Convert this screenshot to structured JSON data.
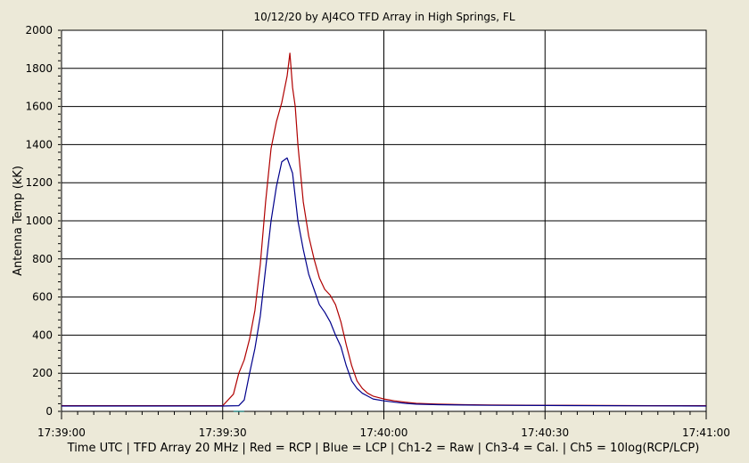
{
  "chart_data": {
    "type": "line",
    "title": "10/12/20  by  AJ4CO TFD Array  in  High Springs, FL",
    "ylabel": "Antenna Temp (kK)",
    "footer": "Time UTC  |  TFD Array 20 MHz  |  Red = RCP  |  Blue = LCP  |  Ch1-2 = Raw  |  Ch3-4 = Cal.  |  Ch5 = 10log(RCP/LCP)",
    "ylim": [
      0,
      2000
    ],
    "xlim": [
      0,
      120
    ],
    "y_ticks": [
      0,
      200,
      400,
      600,
      800,
      1000,
      1200,
      1400,
      1600,
      1800,
      2000
    ],
    "y_tick_labels": [
      "0",
      "200",
      "400",
      "600",
      "800",
      "1000",
      "1200",
      "1400",
      "1600",
      "1800",
      "2000"
    ],
    "x_ticks": [
      0,
      30,
      60,
      90,
      120
    ],
    "x_tick_labels": [
      "17:39:00",
      "17:39:30",
      "17:40:00",
      "17:40:30",
      "17:41:00"
    ],
    "x_unit": "seconds after 17:39:00",
    "grid": true,
    "series": [
      {
        "name": "RCP",
        "color": "#b00000",
        "x": [
          0,
          30,
          32,
          33,
          34,
          35,
          36,
          37,
          38,
          39,
          40,
          41,
          42,
          42.5,
          43,
          43.5,
          44,
          45,
          46,
          47,
          48,
          49,
          50,
          51,
          52,
          53,
          54,
          55,
          56,
          57,
          58,
          60,
          62,
          64,
          66,
          70,
          75,
          80,
          90,
          100,
          110,
          120
        ],
        "y": [
          30,
          30,
          90,
          200,
          270,
          380,
          530,
          770,
          1100,
          1380,
          1520,
          1620,
          1760,
          1880,
          1700,
          1600,
          1400,
          1100,
          920,
          800,
          700,
          640,
          610,
          560,
          470,
          350,
          240,
          160,
          120,
          95,
          80,
          65,
          55,
          48,
          42,
          38,
          35,
          33,
          32,
          31,
          30,
          30
        ]
      },
      {
        "name": "LCP",
        "color": "#00008b",
        "x": [
          0,
          30,
          33,
          34,
          35,
          36,
          37,
          38,
          39,
          40,
          41,
          42,
          43,
          44,
          45,
          46,
          47,
          48,
          49,
          50,
          51,
          52,
          53,
          54,
          55,
          56,
          57,
          58,
          60,
          62,
          64,
          66,
          70,
          75,
          80,
          90,
          100,
          110,
          120
        ],
        "y": [
          28,
          28,
          30,
          60,
          200,
          330,
          500,
          750,
          1000,
          1180,
          1310,
          1330,
          1250,
          1000,
          850,
          720,
          640,
          560,
          520,
          470,
          400,
          340,
          240,
          160,
          120,
          95,
          80,
          65,
          55,
          48,
          42,
          38,
          35,
          33,
          32,
          31,
          30,
          29,
          28
        ]
      },
      {
        "name": "Ch5",
        "color": "#007070",
        "x": [
          32,
          34
        ],
        "y": [
          -2,
          -2
        ]
      }
    ]
  }
}
